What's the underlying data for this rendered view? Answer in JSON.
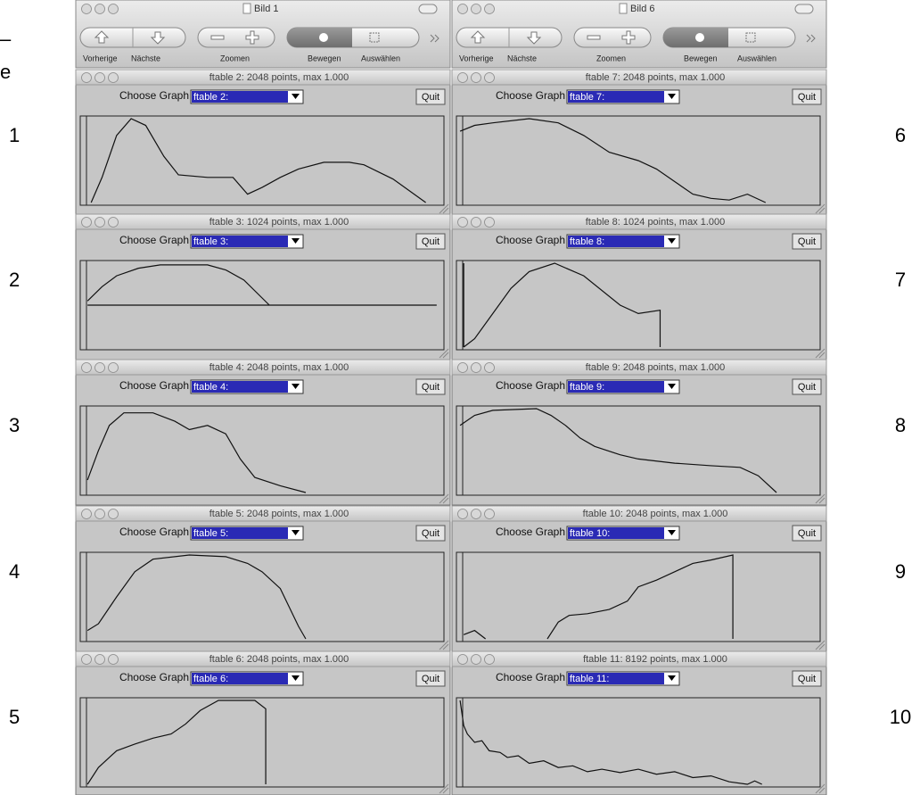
{
  "edge_text": [
    "–",
    "e"
  ],
  "row_numbers_left": [
    "1",
    "2",
    "3",
    "4",
    "5"
  ],
  "row_numbers_right": [
    "6",
    "7",
    "8",
    "9",
    "10"
  ],
  "viewers": [
    {
      "title": "Bild 1",
      "toolbar": {
        "prev": "Vorherige",
        "next": "Nächste",
        "zoom": "Zoomen",
        "move": "Bewegen",
        "select": "Auswählen"
      }
    },
    {
      "title": "Bild 6",
      "toolbar": {
        "prev": "Vorherige",
        "next": "Nächste",
        "zoom": "Zoomen",
        "move": "Bewegen",
        "select": "Auswählen"
      }
    }
  ],
  "panels": [
    {
      "title": "ftable 2:  2048 points, max 1.000",
      "choose_label": "Choose Graph",
      "selected": "ftable 2:",
      "quit": "Quit"
    },
    {
      "title": "ftable 3:  1024 points, max 1.000",
      "choose_label": "Choose Graph",
      "selected": "ftable 3:",
      "quit": "Quit"
    },
    {
      "title": "ftable 4:  2048 points, max 1.000",
      "choose_label": "Choose Graph",
      "selected": "ftable 4:",
      "quit": "Quit"
    },
    {
      "title": "ftable 5:  2048 points, max 1.000",
      "choose_label": "Choose Graph",
      "selected": "ftable 5:",
      "quit": "Quit"
    },
    {
      "title": "ftable 6:  2048 points, max 1.000",
      "choose_label": "Choose Graph",
      "selected": "ftable 6:",
      "quit": "Quit"
    },
    {
      "title": "ftable 7:  2048 points, max 1.000",
      "choose_label": "Choose Graph",
      "selected": "ftable 7:",
      "quit": "Quit"
    },
    {
      "title": "ftable 8:  1024 points, max 1.000",
      "choose_label": "Choose Graph",
      "selected": "ftable 8:",
      "quit": "Quit"
    },
    {
      "title": "ftable 9:  2048 points, max 1.000",
      "choose_label": "Choose Graph",
      "selected": "ftable 9:",
      "quit": "Quit"
    },
    {
      "title": "ftable 10:  2048 points, max 1.000",
      "choose_label": "Choose Graph",
      "selected": "ftable 10:",
      "quit": "Quit"
    },
    {
      "title": "ftable 11:  8192 points, max 1.000",
      "choose_label": "Choose Graph",
      "selected": "ftable 11:",
      "quit": "Quit"
    }
  ]
}
